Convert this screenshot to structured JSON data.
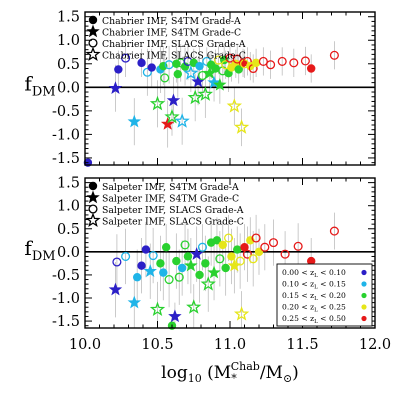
{
  "chart_data": [
    {
      "type": "scatter",
      "panel": "top",
      "ylabel_main": "f",
      "ylabel_sub": "DM",
      "xlim": [
        10.0,
        12.0
      ],
      "ylim": [
        -1.65,
        1.6
      ],
      "yticks": [
        "1.5",
        "1.0",
        "0.5",
        "0.0",
        "-0.5",
        "-1.0",
        "-1.5"
      ],
      "ytick_values": [
        1.5,
        1.0,
        0.5,
        0.0,
        -0.5,
        -1.0,
        -1.5
      ],
      "zero_line": true,
      "legend": {
        "placement": "top-left",
        "entries": [
          {
            "label": "Chabrier IMF, S4TM Grade-A",
            "marker": "filled-circle"
          },
          {
            "label": "Chabrier IMF, S4TM Grade-C",
            "marker": "filled-star"
          },
          {
            "label": "Chabrier IMF, SLACS Grade-A",
            "marker": "open-circle"
          },
          {
            "label": "Chabrier IMF, SLACS Grade-C",
            "marker": "open-star"
          }
        ]
      },
      "points": [
        {
          "x": 10.02,
          "y": -1.6,
          "m": "filled-circle",
          "c": "#2b1fc7",
          "e": 0.1
        },
        {
          "x": 10.21,
          "y": -0.02,
          "m": "filled-star",
          "c": "#2b1fc7",
          "e": 0.5
        },
        {
          "x": 10.23,
          "y": 0.38,
          "m": "filled-circle",
          "c": "#2b1fc7",
          "e": 0.4
        },
        {
          "x": 10.28,
          "y": 0.62,
          "m": "open-circle",
          "c": "#2b1fc7",
          "e": 0.4
        },
        {
          "x": 10.34,
          "y": -0.73,
          "m": "filled-star",
          "c": "#1fb4e8",
          "e": 0.5
        },
        {
          "x": 10.39,
          "y": 0.52,
          "m": "filled-circle",
          "c": "#2b1fc7",
          "e": 0.3
        },
        {
          "x": 10.43,
          "y": 0.32,
          "m": "open-circle",
          "c": "#1fb4e8",
          "e": 0.5
        },
        {
          "x": 10.46,
          "y": 0.42,
          "m": "filled-circle",
          "c": "#2b1fc7",
          "e": 0.4
        },
        {
          "x": 10.5,
          "y": -0.35,
          "m": "open-star",
          "c": "#29d12f",
          "e": 0.5
        },
        {
          "x": 10.52,
          "y": 0.38,
          "m": "filled-circle",
          "c": "#1fb4e8",
          "e": 0.5
        },
        {
          "x": 10.54,
          "y": 0.45,
          "m": "filled-circle",
          "c": "#29d12f",
          "e": 0.4
        },
        {
          "x": 10.55,
          "y": 0.2,
          "m": "open-circle",
          "c": "#29d12f",
          "e": 0.5
        },
        {
          "x": 10.57,
          "y": -0.78,
          "m": "filled-star",
          "c": "#e61919",
          "e": 0.5
        },
        {
          "x": 10.58,
          "y": 0.48,
          "m": "open-circle",
          "c": "#1fb4e8",
          "e": 0.4
        },
        {
          "x": 10.6,
          "y": -0.63,
          "m": "open-star",
          "c": "#29d12f",
          "e": 0.4
        },
        {
          "x": 10.61,
          "y": -0.28,
          "m": "filled-star",
          "c": "#2b1fc7",
          "e": 0.5
        },
        {
          "x": 10.63,
          "y": 0.5,
          "m": "filled-circle",
          "c": "#29d12f",
          "e": 0.4
        },
        {
          "x": 10.64,
          "y": 0.28,
          "m": "filled-circle",
          "c": "#29d12f",
          "e": 0.5
        },
        {
          "x": 10.66,
          "y": 0.52,
          "m": "open-circle",
          "c": "#29d12f",
          "e": 0.4
        },
        {
          "x": 10.67,
          "y": -0.72,
          "m": "open-star",
          "c": "#1fb4e8",
          "e": 0.5
        },
        {
          "x": 10.69,
          "y": 0.44,
          "m": "filled-circle",
          "c": "#29d12f",
          "e": 0.4
        },
        {
          "x": 10.71,
          "y": 0.55,
          "m": "open-circle",
          "c": "#2b1fc7",
          "e": 0.4
        },
        {
          "x": 10.73,
          "y": 0.3,
          "m": "open-star",
          "c": "#1fb4e8",
          "e": 0.4
        },
        {
          "x": 10.75,
          "y": 0.52,
          "m": "filled-circle",
          "c": "#29d12f",
          "e": 0.3
        },
        {
          "x": 10.76,
          "y": -0.22,
          "m": "open-star",
          "c": "#29d12f",
          "e": 0.5
        },
        {
          "x": 10.78,
          "y": 0.12,
          "m": "filled-star",
          "c": "#2b1fc7",
          "e": 0.5
        },
        {
          "x": 10.79,
          "y": 0.45,
          "m": "filled-circle",
          "c": "#1fb4e8",
          "e": 0.4
        },
        {
          "x": 10.81,
          "y": 0.25,
          "m": "open-circle",
          "c": "#29d12f",
          "e": 0.4
        },
        {
          "x": 10.83,
          "y": -0.15,
          "m": "open-star",
          "c": "#29d12f",
          "e": 0.5
        },
        {
          "x": 10.84,
          "y": 0.55,
          "m": "open-circle",
          "c": "#1fb4e8",
          "e": 0.3
        },
        {
          "x": 10.86,
          "y": 0.3,
          "m": "filled-star",
          "c": "#29d12f",
          "e": 0.4
        },
        {
          "x": 10.87,
          "y": 0.48,
          "m": "filled-circle",
          "c": "#29d12f",
          "e": 0.3
        },
        {
          "x": 10.89,
          "y": 0.1,
          "m": "filled-star",
          "c": "#1fb4e8",
          "e": 0.4
        },
        {
          "x": 10.9,
          "y": 0.4,
          "m": "filled-circle",
          "c": "#29d12f",
          "e": 0.4
        },
        {
          "x": 10.92,
          "y": 0.58,
          "m": "open-circle",
          "c": "#e6e619",
          "e": 0.3
        },
        {
          "x": 10.93,
          "y": 0.05,
          "m": "filled-star",
          "c": "#29d12f",
          "e": 0.4
        },
        {
          "x": 10.95,
          "y": 0.35,
          "m": "open-circle",
          "c": "#29d12f",
          "e": 0.4
        },
        {
          "x": 10.96,
          "y": 0.58,
          "m": "filled-circle",
          "c": "#29d12f",
          "e": 0.3
        },
        {
          "x": 10.97,
          "y": 0.48,
          "m": "open-circle",
          "c": "#e6e619",
          "e": 0.3
        },
        {
          "x": 10.99,
          "y": 0.3,
          "m": "filled-circle",
          "c": "#29d12f",
          "e": 0.4
        },
        {
          "x": 11.0,
          "y": 0.62,
          "m": "open-circle",
          "c": "#e61919",
          "e": 0.3
        },
        {
          "x": 11.01,
          "y": 0.42,
          "m": "filled-circle",
          "c": "#e6e619",
          "e": 0.3
        },
        {
          "x": 11.03,
          "y": -0.4,
          "m": "open-star",
          "c": "#e6e619",
          "e": 0.4
        },
        {
          "x": 11.04,
          "y": 0.5,
          "m": "filled-circle",
          "c": "#e6e619",
          "e": 0.3
        },
        {
          "x": 11.05,
          "y": 0.6,
          "m": "open-circle",
          "c": "#e61919",
          "e": 0.3
        },
        {
          "x": 11.06,
          "y": 0.38,
          "m": "filled-circle",
          "c": "#29d12f",
          "e": 0.3
        },
        {
          "x": 11.08,
          "y": -0.85,
          "m": "open-star",
          "c": "#e6e619",
          "e": 0.4
        },
        {
          "x": 11.09,
          "y": 0.52,
          "m": "filled-circle",
          "c": "#e61919",
          "e": 0.3
        },
        {
          "x": 11.1,
          "y": 0.5,
          "m": "open-circle",
          "c": "#e6e619",
          "e": 0.3
        },
        {
          "x": 11.12,
          "y": 0.55,
          "m": "open-circle",
          "c": "#e61919",
          "e": 0.3
        },
        {
          "x": 11.14,
          "y": 0.45,
          "m": "filled-circle",
          "c": "#e6e619",
          "e": 0.3
        },
        {
          "x": 11.16,
          "y": 0.4,
          "m": "open-circle",
          "c": "#e61919",
          "e": 0.3
        },
        {
          "x": 11.18,
          "y": 0.52,
          "m": "filled-circle",
          "c": "#e6e619",
          "e": 0.3
        },
        {
          "x": 11.23,
          "y": 0.55,
          "m": "open-circle",
          "c": "#e61919",
          "e": 0.3
        },
        {
          "x": 11.28,
          "y": 0.48,
          "m": "open-circle",
          "c": "#e61919",
          "e": 0.3
        },
        {
          "x": 11.36,
          "y": 0.55,
          "m": "open-circle",
          "c": "#e61919",
          "e": 0.3
        },
        {
          "x": 11.44,
          "y": 0.52,
          "m": "open-circle",
          "c": "#e61919",
          "e": 0.3
        },
        {
          "x": 11.52,
          "y": 0.56,
          "m": "open-circle",
          "c": "#e61919",
          "e": 0.3
        },
        {
          "x": 11.56,
          "y": 0.4,
          "m": "filled-circle",
          "c": "#e61919",
          "e": 0.3
        },
        {
          "x": 11.72,
          "y": 0.68,
          "m": "open-circle",
          "c": "#e61919",
          "e": 0.3
        }
      ]
    },
    {
      "type": "scatter",
      "panel": "bottom",
      "ylabel_main": "f",
      "ylabel_sub": "DM",
      "xlabel_prefix": "log",
      "xlabel_base": "10",
      "xlabel_M": "M",
      "xlabel_star": "*",
      "xlabel_chab": "Chab",
      "xlabel_mid": "/M",
      "xlabel_sun": "⊙",
      "xlim": [
        10.0,
        12.0
      ],
      "ylim": [
        -1.65,
        1.6
      ],
      "xticks": [
        "10.0",
        "10.5",
        "11.0",
        "11.5",
        "12.0"
      ],
      "xtick_values": [
        10.0,
        10.5,
        11.0,
        11.5,
        12.0
      ],
      "yticks": [
        "1.5",
        "1.0",
        "0.5",
        "0.0",
        "-0.5",
        "-1.0",
        "-1.5"
      ],
      "ytick_values": [
        1.5,
        1.0,
        0.5,
        0.0,
        -0.5,
        -1.0,
        -1.5
      ],
      "zero_line": true,
      "legend": {
        "placement": "top-left",
        "entries": [
          {
            "label": "Salpeter IMF, S4TM Grade-A",
            "marker": "filled-circle"
          },
          {
            "label": "Salpeter IMF, S4TM Grade-C",
            "marker": "filled-star"
          },
          {
            "label": "Salpeter IMF, SLACS Grade-A",
            "marker": "open-circle"
          },
          {
            "label": "Salpeter IMF, SLACS Grade-C",
            "marker": "open-star"
          }
        ]
      },
      "redshift_legend": {
        "placement": "bottom-right",
        "entries": [
          {
            "lo": "0.00",
            "hi": "0.10",
            "color": "#2b1fc7"
          },
          {
            "lo": "0.10",
            "hi": "0.15",
            "color": "#1fb4e8"
          },
          {
            "lo": "0.15",
            "hi": "0.20",
            "color": "#29d12f"
          },
          {
            "lo": "0.20",
            "hi": "0.25",
            "color": "#e6e619"
          },
          {
            "lo": "0.25",
            "hi": "0.50",
            "color": "#e61919"
          }
        ],
        "var": "z",
        "var_sub": "L"
      },
      "points": [
        {
          "x": 10.21,
          "y": -0.82,
          "m": "filled-star",
          "c": "#2b1fc7",
          "e": 0.6
        },
        {
          "x": 10.22,
          "y": -0.22,
          "m": "open-circle",
          "c": "#2b1fc7",
          "e": 0.6
        },
        {
          "x": 10.28,
          "y": -0.1,
          "m": "open-circle",
          "c": "#1fb4e8",
          "e": 0.6
        },
        {
          "x": 10.34,
          "y": -1.1,
          "m": "filled-star",
          "c": "#1fb4e8",
          "e": 0.6
        },
        {
          "x": 10.36,
          "y": -0.55,
          "m": "filled-circle",
          "c": "#1fb4e8",
          "e": 0.6
        },
        {
          "x": 10.39,
          "y": -0.3,
          "m": "filled-circle",
          "c": "#2b1fc7",
          "e": 0.6
        },
        {
          "x": 10.42,
          "y": 0.05,
          "m": "filled-circle",
          "c": "#2b1fc7",
          "e": 0.6
        },
        {
          "x": 10.45,
          "y": -0.42,
          "m": "filled-star",
          "c": "#1fb4e8",
          "e": 0.6
        },
        {
          "x": 10.47,
          "y": -0.08,
          "m": "open-circle",
          "c": "#1fb4e8",
          "e": 0.6
        },
        {
          "x": 10.5,
          "y": -1.25,
          "m": "open-star",
          "c": "#29d12f",
          "e": 0.6
        },
        {
          "x": 10.52,
          "y": -0.25,
          "m": "filled-circle",
          "c": "#29d12f",
          "e": 0.6
        },
        {
          "x": 10.54,
          "y": -0.45,
          "m": "filled-circle",
          "c": "#1fb4e8",
          "e": 0.6
        },
        {
          "x": 10.56,
          "y": 0.1,
          "m": "filled-circle",
          "c": "#29d12f",
          "e": 0.5
        },
        {
          "x": 10.58,
          "y": -0.6,
          "m": "open-circle",
          "c": "#29d12f",
          "e": 0.6
        },
        {
          "x": 10.6,
          "y": -1.6,
          "m": "filled-circle",
          "c": "#29d12f",
          "e": 0.2
        },
        {
          "x": 10.62,
          "y": -1.4,
          "m": "filled-star",
          "c": "#2b1fc7",
          "e": 0.3
        },
        {
          "x": 10.63,
          "y": -0.2,
          "m": "filled-circle",
          "c": "#29d12f",
          "e": 0.6
        },
        {
          "x": 10.65,
          "y": -0.55,
          "m": "open-circle",
          "c": "#29d12f",
          "e": 0.6
        },
        {
          "x": 10.67,
          "y": -0.35,
          "m": "filled-circle",
          "c": "#1fb4e8",
          "e": 0.6
        },
        {
          "x": 10.69,
          "y": 0.15,
          "m": "open-circle",
          "c": "#29d12f",
          "e": 0.5
        },
        {
          "x": 10.71,
          "y": -0.1,
          "m": "filled-circle",
          "c": "#29d12f",
          "e": 0.6
        },
        {
          "x": 10.73,
          "y": -0.3,
          "m": "filled-star",
          "c": "#29d12f",
          "e": 0.6
        },
        {
          "x": 10.75,
          "y": -1.2,
          "m": "open-star",
          "c": "#29d12f",
          "e": 0.5
        },
        {
          "x": 10.77,
          "y": -0.05,
          "m": "filled-star",
          "c": "#2b1fc7",
          "e": 0.6
        },
        {
          "x": 10.79,
          "y": -0.5,
          "m": "filled-circle",
          "c": "#29d12f",
          "e": 0.6
        },
        {
          "x": 10.81,
          "y": 0.1,
          "m": "open-circle",
          "c": "#1fb4e8",
          "e": 0.5
        },
        {
          "x": 10.83,
          "y": -0.25,
          "m": "filled-circle",
          "c": "#29d12f",
          "e": 0.6
        },
        {
          "x": 10.85,
          "y": -0.7,
          "m": "open-star",
          "c": "#29d12f",
          "e": 0.6
        },
        {
          "x": 10.87,
          "y": 0.2,
          "m": "filled-circle",
          "c": "#29d12f",
          "e": 0.5
        },
        {
          "x": 10.89,
          "y": -0.45,
          "m": "filled-star",
          "c": "#29d12f",
          "e": 0.6
        },
        {
          "x": 10.91,
          "y": 0.25,
          "m": "filled-circle",
          "c": "#29d12f",
          "e": 0.5
        },
        {
          "x": 10.93,
          "y": -0.15,
          "m": "open-circle",
          "c": "#29d12f",
          "e": 0.6
        },
        {
          "x": 10.95,
          "y": 0.15,
          "m": "filled-circle",
          "c": "#e6e619",
          "e": 0.5
        },
        {
          "x": 10.97,
          "y": -0.35,
          "m": "filled-circle",
          "c": "#29d12f",
          "e": 0.6
        },
        {
          "x": 10.99,
          "y": 0.3,
          "m": "open-circle",
          "c": "#e6e619",
          "e": 0.5
        },
        {
          "x": 11.01,
          "y": -0.1,
          "m": "filled-circle",
          "c": "#e6e619",
          "e": 0.6
        },
        {
          "x": 11.03,
          "y": -0.3,
          "m": "filled-star",
          "c": "#e6e619",
          "e": 0.6
        },
        {
          "x": 11.05,
          "y": 0.05,
          "m": "filled-circle",
          "c": "#29d12f",
          "e": 0.5
        },
        {
          "x": 11.07,
          "y": -0.2,
          "m": "open-circle",
          "c": "#e6e619",
          "e": 0.6
        },
        {
          "x": 11.08,
          "y": -1.35,
          "m": "open-star",
          "c": "#e6e619",
          "e": 0.5
        },
        {
          "x": 11.1,
          "y": 0.1,
          "m": "filled-circle",
          "c": "#e61919",
          "e": 0.5
        },
        {
          "x": 11.12,
          "y": -0.05,
          "m": "open-circle",
          "c": "#e61919",
          "e": 0.6
        },
        {
          "x": 11.14,
          "y": 0.25,
          "m": "filled-circle",
          "c": "#e6e619",
          "e": 0.5
        },
        {
          "x": 11.16,
          "y": -0.15,
          "m": "open-circle",
          "c": "#e6e619",
          "e": 0.6
        },
        {
          "x": 11.18,
          "y": 0.3,
          "m": "open-circle",
          "c": "#e61919",
          "e": 0.5
        },
        {
          "x": 11.2,
          "y": 0.0,
          "m": "filled-circle",
          "c": "#e6e619",
          "e": 0.5
        },
        {
          "x": 11.24,
          "y": 0.1,
          "m": "open-circle",
          "c": "#e61919",
          "e": 0.5
        },
        {
          "x": 11.3,
          "y": 0.2,
          "m": "open-circle",
          "c": "#e61919",
          "e": 0.5
        },
        {
          "x": 11.38,
          "y": -0.05,
          "m": "open-circle",
          "c": "#e61919",
          "e": 0.5
        },
        {
          "x": 11.47,
          "y": 0.12,
          "m": "open-circle",
          "c": "#e61919",
          "e": 0.5
        },
        {
          "x": 11.56,
          "y": -0.2,
          "m": "filled-circle",
          "c": "#e61919",
          "e": 0.5
        },
        {
          "x": 11.72,
          "y": 0.45,
          "m": "open-circle",
          "c": "#e61919",
          "e": 0.4
        }
      ]
    }
  ]
}
